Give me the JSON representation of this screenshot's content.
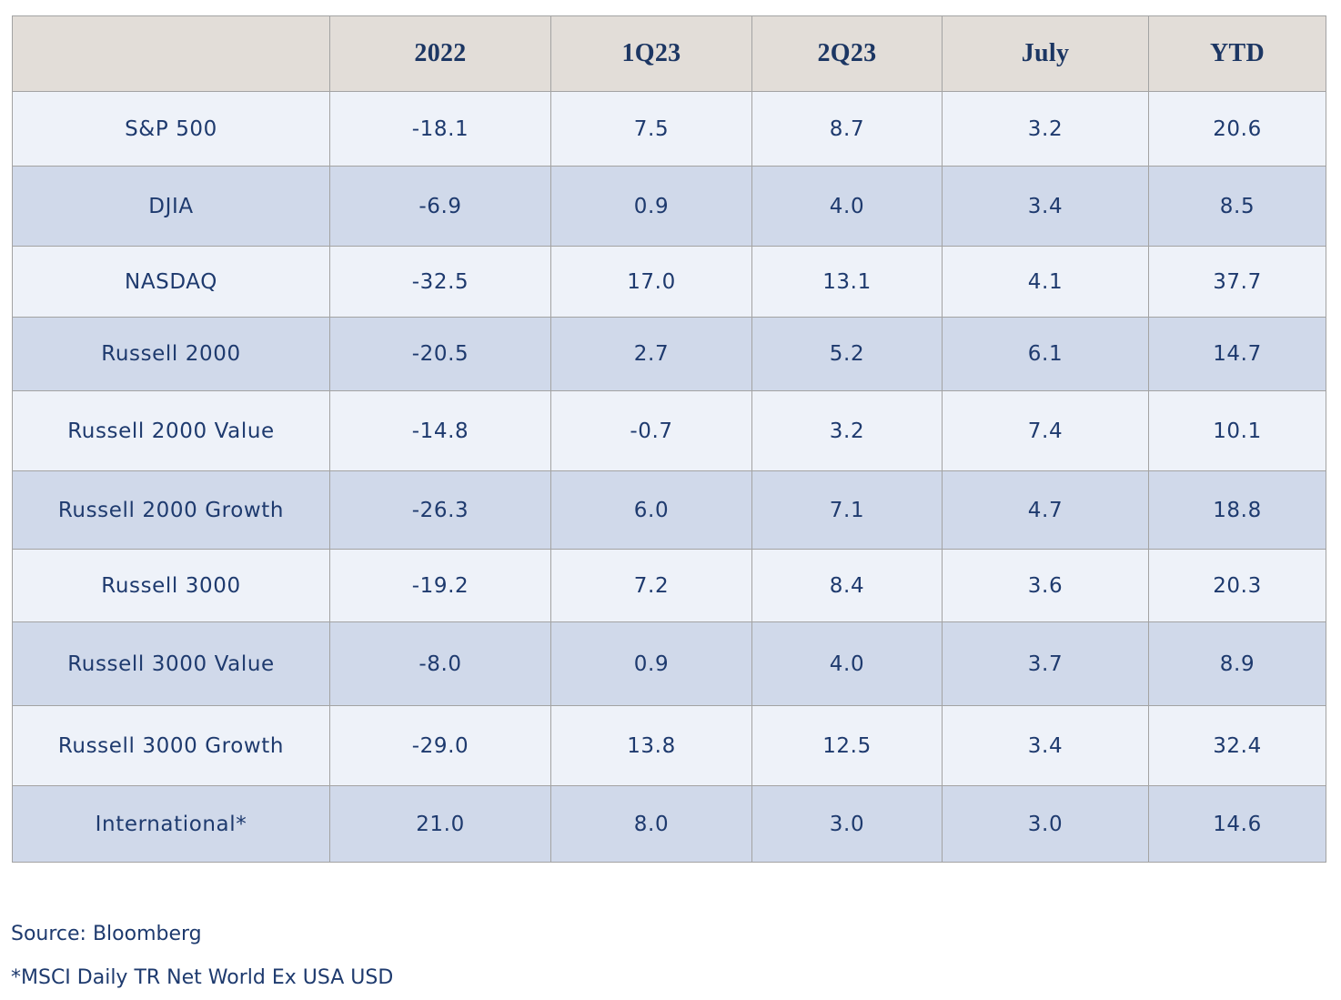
{
  "chart_data": {
    "type": "table",
    "columns": [
      "",
      "2022",
      "1Q23",
      "2Q23",
      "July",
      "YTD"
    ],
    "rows": [
      {
        "label": "S&P 500",
        "values": [
          "-18.1",
          "7.5",
          "8.7",
          "3.2",
          "20.6"
        ]
      },
      {
        "label": "DJIA",
        "values": [
          "-6.9",
          "0.9",
          "4.0",
          "3.4",
          "8.5"
        ]
      },
      {
        "label": "NASDAQ",
        "values": [
          "-32.5",
          "17.0",
          "13.1",
          "4.1",
          "37.7"
        ]
      },
      {
        "label": "Russell 2000",
        "values": [
          "-20.5",
          "2.7",
          "5.2",
          "6.1",
          "14.7"
        ]
      },
      {
        "label": "Russell 2000 Value",
        "values": [
          "-14.8",
          "-0.7",
          "3.2",
          "7.4",
          "10.1"
        ]
      },
      {
        "label": "Russell 2000 Growth",
        "values": [
          "-26.3",
          "6.0",
          "7.1",
          "4.7",
          "18.8"
        ]
      },
      {
        "label": "Russell 3000",
        "values": [
          "-19.2",
          "7.2",
          "8.4",
          "3.6",
          "20.3"
        ]
      },
      {
        "label": "Russell 3000 Value",
        "values": [
          "-8.0",
          "0.9",
          "4.0",
          "3.7",
          "8.9"
        ]
      },
      {
        "label": "Russell 3000 Growth",
        "values": [
          "-29.0",
          "13.8",
          "12.5",
          "3.4",
          "32.4"
        ]
      },
      {
        "label": "International*",
        "values": [
          "21.0",
          "8.0",
          "3.0",
          "3.0",
          "14.6"
        ]
      }
    ]
  },
  "footnotes": {
    "source": "Source: Bloomberg",
    "international_note": "*MSCI Daily TR Net World Ex USA USD"
  },
  "colors": {
    "header_bg": "#e2ddd8",
    "row_light": "#eef2f9",
    "row_dark": "#d0d9ea",
    "text": "#1e3a6e",
    "border": "#a3a3a3"
  }
}
